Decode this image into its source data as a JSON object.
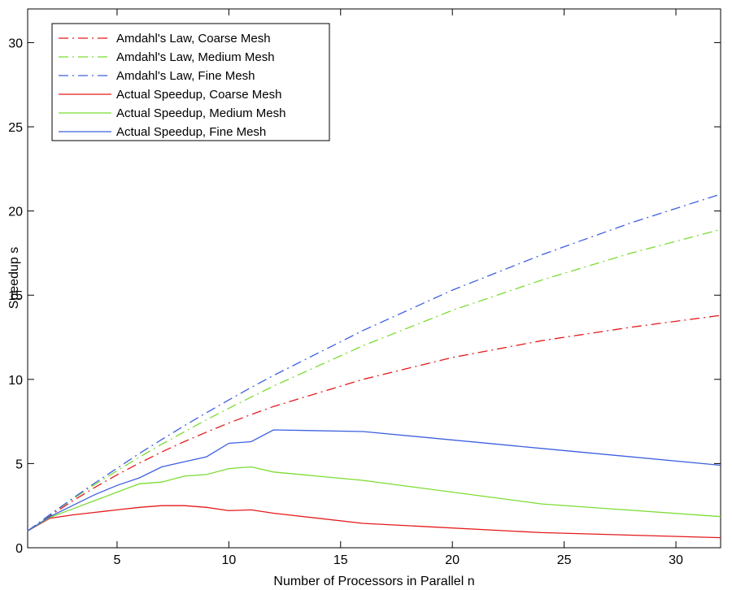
{
  "chart_data": {
    "type": "line",
    "title": "",
    "xlabel": "Number of Processors in Parallel n",
    "ylabel": "Speedup s",
    "xlim": [
      1,
      32
    ],
    "ylim": [
      0,
      32
    ],
    "xticks": [
      5,
      10,
      15,
      20,
      25,
      30
    ],
    "yticks": [
      0,
      5,
      10,
      15,
      20,
      25,
      30
    ],
    "grid": false,
    "legend_position": "top-left",
    "series": [
      {
        "name": "Amdahl's Law, Coarse Mesh",
        "color": "#e41a1c",
        "style": "dashdot",
        "x": [
          1,
          2,
          3,
          4,
          5,
          6,
          7,
          8,
          9,
          10,
          11,
          12,
          16,
          20,
          24,
          28,
          32
        ],
        "y": [
          1.0,
          1.9,
          2.77,
          3.58,
          4.33,
          5.03,
          5.69,
          6.3,
          6.87,
          7.41,
          7.91,
          8.39,
          10.0,
          11.3,
          12.3,
          13.1,
          13.8
        ]
      },
      {
        "name": "Amdahl's Law, Medium Mesh",
        "color": "#7cdc32",
        "style": "dashdot",
        "x": [
          1,
          2,
          3,
          4,
          5,
          6,
          7,
          8,
          9,
          10,
          11,
          12,
          16,
          20,
          24,
          28,
          32
        ],
        "y": [
          1.0,
          1.96,
          2.88,
          3.75,
          4.57,
          5.38,
          6.15,
          6.88,
          7.6,
          8.28,
          8.95,
          9.6,
          12.0,
          14.1,
          15.9,
          17.5,
          18.9
        ]
      },
      {
        "name": "Amdahl's Law, Fine Mesh",
        "color": "#3e60e0",
        "style": "dashdot",
        "x": [
          1,
          2,
          3,
          4,
          5,
          6,
          7,
          8,
          9,
          10,
          11,
          12,
          16,
          20,
          24,
          28,
          32
        ],
        "y": [
          1.0,
          1.97,
          2.92,
          3.84,
          4.72,
          5.6,
          6.43,
          7.24,
          8.02,
          8.78,
          9.52,
          10.23,
          12.9,
          15.3,
          17.4,
          19.3,
          21.0
        ]
      },
      {
        "name": "Actual Speedup, Coarse Mesh",
        "color": "#e41a1c",
        "style": "solid",
        "x": [
          1,
          2,
          3,
          4,
          5,
          6,
          7,
          8,
          9,
          10,
          11,
          12,
          16,
          24,
          32
        ],
        "y": [
          1.0,
          1.75,
          1.95,
          2.1,
          2.25,
          2.4,
          2.5,
          2.5,
          2.4,
          2.2,
          2.25,
          2.05,
          1.45,
          0.9,
          0.6
        ]
      },
      {
        "name": "Actual Speedup, Medium Mesh",
        "color": "#7cdc32",
        "style": "solid",
        "x": [
          1,
          2,
          3,
          4,
          5,
          6,
          7,
          8,
          9,
          10,
          11,
          12,
          16,
          24,
          32
        ],
        "y": [
          1.0,
          1.8,
          2.3,
          2.8,
          3.3,
          3.8,
          3.9,
          4.25,
          4.35,
          4.7,
          4.8,
          4.5,
          4.0,
          2.6,
          1.85
        ]
      },
      {
        "name": "Actual Speedup, Fine Mesh",
        "color": "#3e60e0",
        "style": "solid",
        "x": [
          1,
          2,
          3,
          4,
          5,
          6,
          7,
          8,
          9,
          10,
          11,
          12,
          16,
          24,
          32
        ],
        "y": [
          1.0,
          1.85,
          2.5,
          3.15,
          3.7,
          4.15,
          4.8,
          5.1,
          5.4,
          6.2,
          6.3,
          7.0,
          6.9,
          5.9,
          4.9
        ]
      }
    ]
  }
}
